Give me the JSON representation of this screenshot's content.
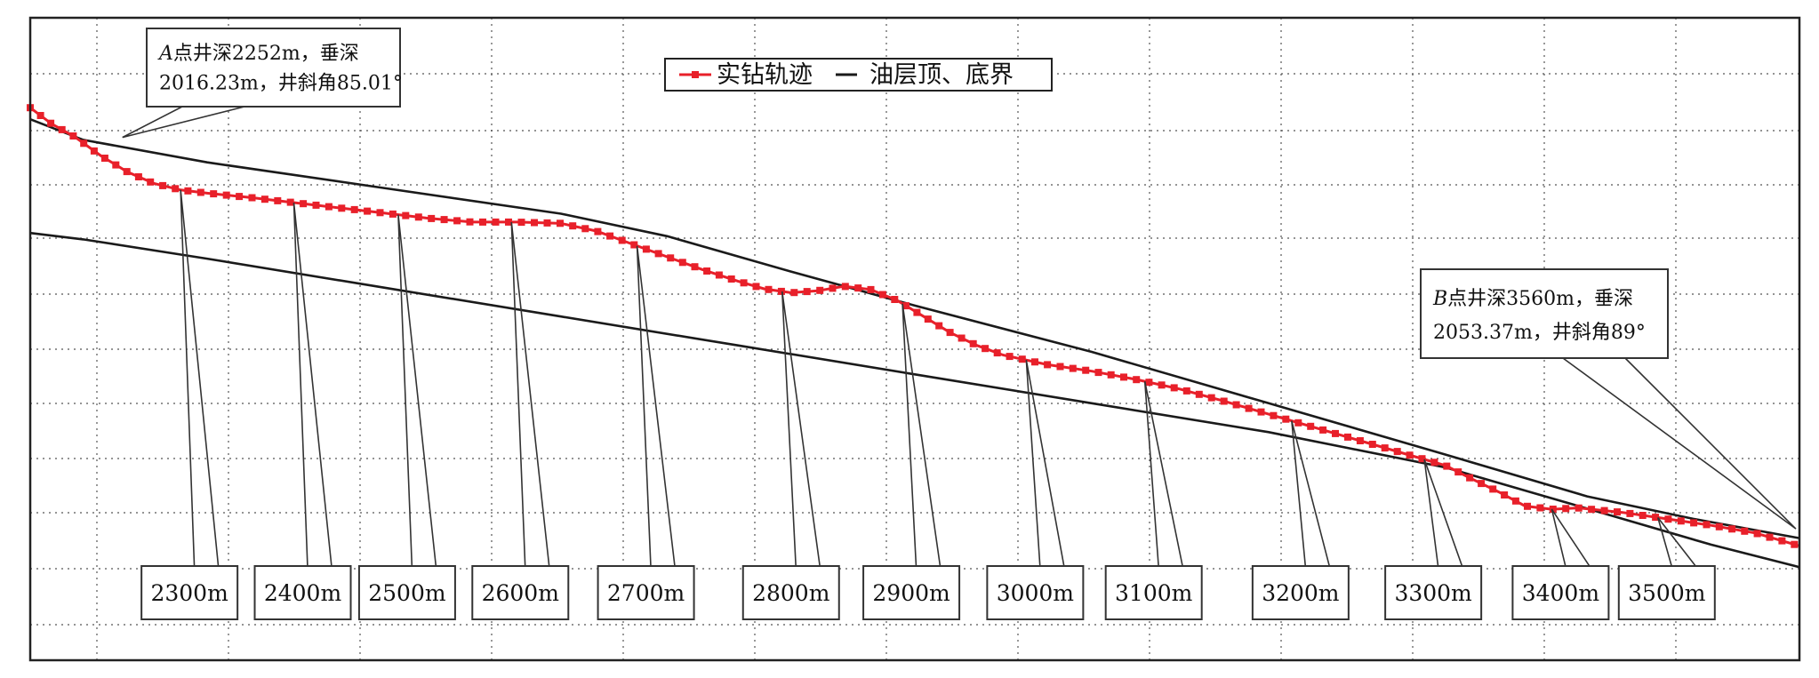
{
  "chart_data": {
    "type": "line",
    "title": "",
    "xlabel": "",
    "ylabel": "",
    "legend": {
      "position": "top-center",
      "items": [
        {
          "key": "trajectory",
          "label": "实钻轨迹",
          "color": "#e8202a",
          "style": "line-with-square-markers"
        },
        {
          "key": "boundary",
          "label": "油层顶、底界",
          "color": "#1a1a1a",
          "style": "line"
        }
      ]
    },
    "grid": true,
    "axis_tick_labels_visible": false,
    "series": [
      {
        "name": "实钻轨迹",
        "color": "#e8202a",
        "points": [
          [
            0,
            0.14
          ],
          [
            0.012,
            0.165
          ],
          [
            0.025,
            0.185
          ],
          [
            0.04,
            0.215
          ],
          [
            0.055,
            0.24
          ],
          [
            0.07,
            0.258
          ],
          [
            0.085,
            0.268
          ],
          [
            0.1,
            0.273
          ],
          [
            0.125,
            0.28
          ],
          [
            0.15,
            0.288
          ],
          [
            0.175,
            0.296
          ],
          [
            0.2,
            0.304
          ],
          [
            0.225,
            0.312
          ],
          [
            0.25,
            0.318
          ],
          [
            0.275,
            0.318
          ],
          [
            0.3,
            0.32
          ],
          [
            0.32,
            0.332
          ],
          [
            0.34,
            0.352
          ],
          [
            0.36,
            0.372
          ],
          [
            0.38,
            0.392
          ],
          [
            0.4,
            0.41
          ],
          [
            0.415,
            0.422
          ],
          [
            0.43,
            0.428
          ],
          [
            0.445,
            0.425
          ],
          [
            0.46,
            0.418
          ],
          [
            0.475,
            0.423
          ],
          [
            0.49,
            0.44
          ],
          [
            0.505,
            0.465
          ],
          [
            0.52,
            0.49
          ],
          [
            0.535,
            0.51
          ],
          [
            0.55,
            0.525
          ],
          [
            0.575,
            0.54
          ],
          [
            0.6,
            0.55
          ],
          [
            0.625,
            0.563
          ],
          [
            0.65,
            0.578
          ],
          [
            0.675,
            0.597
          ],
          [
            0.7,
            0.617
          ],
          [
            0.725,
            0.637
          ],
          [
            0.75,
            0.657
          ],
          [
            0.775,
            0.677
          ],
          [
            0.8,
            0.697
          ],
          [
            0.815,
            0.718
          ],
          [
            0.83,
            0.738
          ],
          [
            0.845,
            0.76
          ],
          [
            0.86,
            0.765
          ],
          [
            0.875,
            0.763
          ],
          [
            0.9,
            0.77
          ],
          [
            0.925,
            0.78
          ],
          [
            0.95,
            0.79
          ],
          [
            0.975,
            0.802
          ],
          [
            1.0,
            0.822
          ]
        ]
      },
      {
        "name": "油层顶、底界",
        "color": "#1a1a1a",
        "points_top": [
          [
            0,
            0.158
          ],
          [
            0.03,
            0.19
          ],
          [
            0.1,
            0.225
          ],
          [
            0.2,
            0.265
          ],
          [
            0.3,
            0.305
          ],
          [
            0.36,
            0.34
          ],
          [
            0.43,
            0.395
          ],
          [
            0.5,
            0.448
          ],
          [
            0.6,
            0.52
          ],
          [
            0.7,
            0.6
          ],
          [
            0.8,
            0.68
          ],
          [
            0.88,
            0.745
          ],
          [
            0.94,
            0.78
          ],
          [
            1.0,
            0.81
          ]
        ],
        "points_bottom": [
          [
            0,
            0.335
          ],
          [
            0.03,
            0.345
          ],
          [
            0.1,
            0.375
          ],
          [
            0.2,
            0.42
          ],
          [
            0.3,
            0.465
          ],
          [
            0.4,
            0.51
          ],
          [
            0.5,
            0.555
          ],
          [
            0.6,
            0.6
          ],
          [
            0.7,
            0.645
          ],
          [
            0.8,
            0.7
          ],
          [
            0.85,
            0.74
          ],
          [
            0.9,
            0.78
          ],
          [
            0.95,
            0.82
          ],
          [
            1.0,
            0.855
          ]
        ]
      }
    ],
    "depth_markers": [
      {
        "label": "2300m",
        "x": 0.085
      },
      {
        "label": "2400m",
        "x": 0.149
      },
      {
        "label": "2500m",
        "x": 0.208
      },
      {
        "label": "2600m",
        "x": 0.272
      },
      {
        "label": "2700m",
        "x": 0.343
      },
      {
        "label": "2800m",
        "x": 0.425
      },
      {
        "label": "2900m",
        "x": 0.493
      },
      {
        "label": "3000m",
        "x": 0.563
      },
      {
        "label": "3100m",
        "x": 0.63
      },
      {
        "label": "3200m",
        "x": 0.713
      },
      {
        "label": "3300m",
        "x": 0.788
      },
      {
        "label": "3400m",
        "x": 0.86
      },
      {
        "label": "3500m",
        "x": 0.92
      }
    ],
    "annotations": [
      {
        "id": "point-a",
        "line1_prefix": "A",
        "line1_rest": "点井深2252m，垂深",
        "line2": "2016.23m，井斜角85.01°",
        "target_x": 0.027
      },
      {
        "id": "point-b",
        "line1_prefix": "B",
        "line1_rest": "点井深3560m，垂深",
        "line2": "2053.37m，井斜角89°",
        "target_x": 0.998
      }
    ]
  }
}
